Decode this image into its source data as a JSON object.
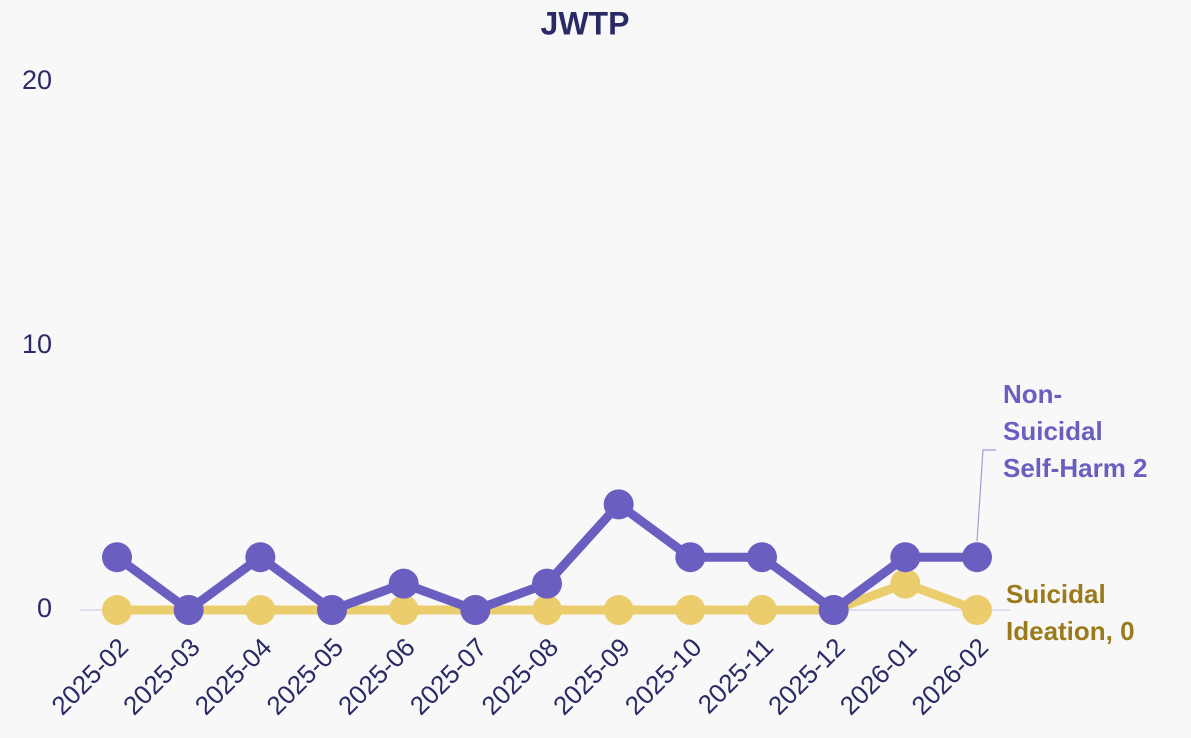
{
  "chart_data": {
    "type": "line",
    "title": "JWTP",
    "categories": [
      "2025-02",
      "2025-03",
      "2025-04",
      "2025-05",
      "2025-06",
      "2025-07",
      "2025-08",
      "2025-09",
      "2025-10",
      "2025-11",
      "2025-12",
      "2026-01",
      "2026-02"
    ],
    "series": [
      {
        "name": "Non-Suicidal Self-Harm",
        "color": "#6a5fc1",
        "end_label": "Non-Suicidal Self-Harm 2",
        "end_label_color": "#6a5fc1",
        "values": [
          2,
          0,
          2,
          0,
          1,
          0,
          1,
          4,
          2,
          2,
          0,
          2,
          2
        ]
      },
      {
        "name": "Suicidal Ideation",
        "color": "#ebcd6e",
        "end_label": "Suicidal Ideation, 0",
        "end_label_color": "#9a7a1a",
        "values": [
          0,
          0,
          0,
          0,
          0,
          0,
          0,
          0,
          0,
          0,
          0,
          1,
          0
        ]
      }
    ],
    "ylim": [
      0,
      20
    ],
    "yticks": [
      0,
      10,
      20
    ],
    "grid": false
  }
}
